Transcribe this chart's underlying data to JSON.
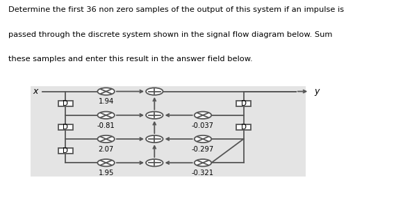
{
  "title_lines": [
    "Determine the first 36 non zero samples of the output of this system if an impulse is",
    "passed through the discrete system shown in the signal flow diagram below. Sum",
    "these samples and enter this result in the answer field below."
  ],
  "bg_color": "#e8e8e8",
  "text_color": "#000000",
  "gains_left": [
    "1.94",
    "-0.81",
    "2.07",
    "1.95"
  ],
  "gains_right": [
    "-0.037",
    "-0.297",
    "-0.321"
  ],
  "x_label": "x",
  "y_label": "y",
  "line_color": "#555555",
  "node_edge_color": "#555555"
}
